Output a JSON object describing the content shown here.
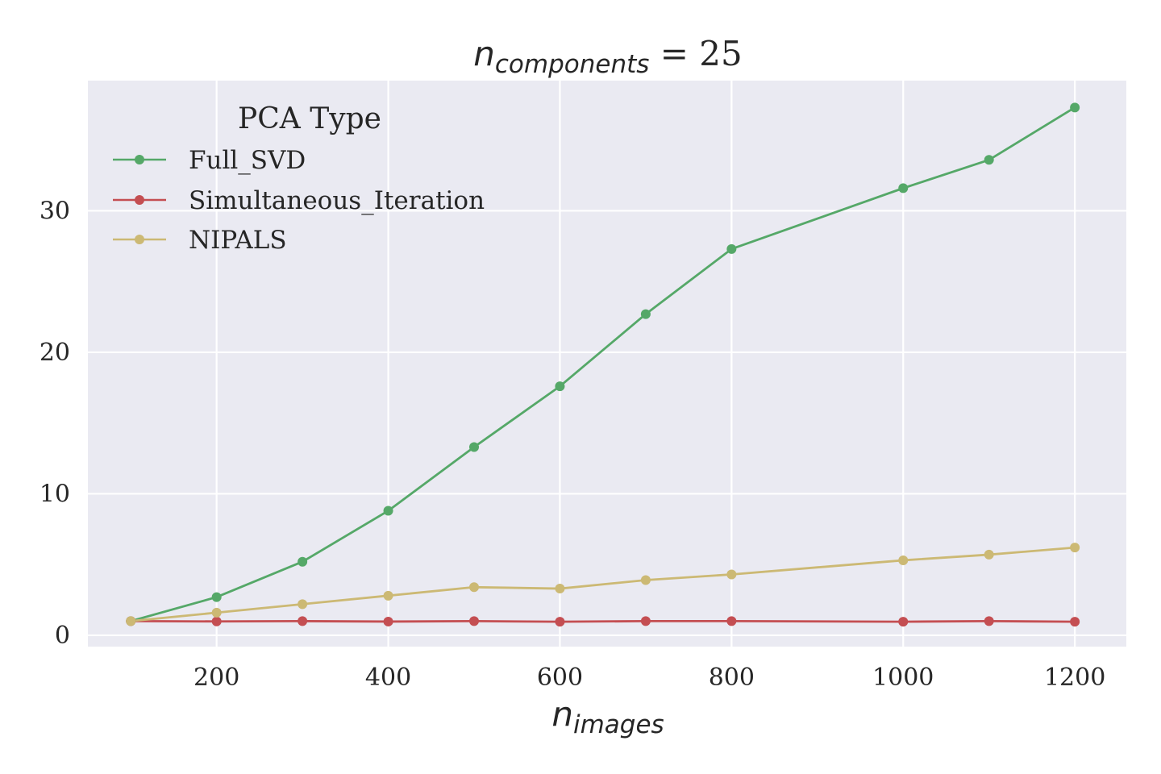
{
  "chart_data": {
    "type": "line",
    "title": {
      "base": "n",
      "subscript": "components",
      "rest": " = 25"
    },
    "xlabel": {
      "base": "n",
      "subscript": "images"
    },
    "ylabel": "",
    "xlim": [
      50,
      1260
    ],
    "ylim": [
      -0.8,
      39.2
    ],
    "xticks": [
      200,
      400,
      600,
      800,
      1000,
      1200
    ],
    "yticks": [
      0,
      10,
      20,
      30
    ],
    "grid": true,
    "legend": {
      "title": "PCA Type",
      "placement": "top-left"
    },
    "x": [
      100,
      200,
      300,
      400,
      500,
      600,
      700,
      800,
      1000,
      1100,
      1200
    ],
    "series": [
      {
        "name": "Full_SVD",
        "color": "#55a868",
        "values": [
          1.0,
          2.7,
          5.2,
          8.8,
          13.3,
          17.6,
          22.7,
          27.3,
          31.6,
          33.6,
          37.3
        ]
      },
      {
        "name": "Simultaneous_Iteration",
        "color": "#c44e52",
        "values": [
          1.0,
          0.98,
          1.0,
          0.97,
          1.0,
          0.96,
          1.0,
          1.0,
          0.96,
          1.0,
          0.96
        ]
      },
      {
        "name": "NIPALS",
        "color": "#ccb974",
        "values": [
          1.0,
          1.6,
          2.2,
          2.8,
          3.4,
          3.3,
          3.9,
          4.3,
          5.3,
          5.7,
          6.2
        ]
      }
    ]
  }
}
